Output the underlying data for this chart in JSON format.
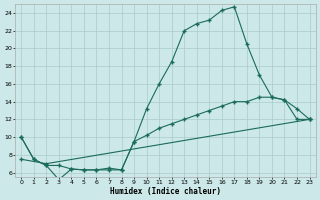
{
  "xlabel": "Humidex (Indice chaleur)",
  "background_color": "#cce8e8",
  "grid_color": "#aacccc",
  "line_color": "#1a6b5a",
  "xlim": [
    -0.5,
    23.5
  ],
  "ylim": [
    5.5,
    25.0
  ],
  "yticks": [
    6,
    8,
    10,
    12,
    14,
    16,
    18,
    20,
    22,
    24
  ],
  "xticks": [
    0,
    1,
    2,
    3,
    4,
    5,
    6,
    7,
    8,
    9,
    10,
    11,
    12,
    13,
    14,
    15,
    16,
    17,
    18,
    19,
    20,
    21,
    22,
    23
  ],
  "line1_x": [
    0,
    1,
    2,
    3,
    4,
    5,
    6,
    7,
    8,
    9,
    10,
    11,
    12,
    13,
    14,
    15,
    16,
    17,
    18,
    19,
    20,
    21,
    22,
    23
  ],
  "line1_y": [
    10,
    7.5,
    6.8,
    5.2,
    6.4,
    6.3,
    6.3,
    6.3,
    6.3,
    9.5,
    13.2,
    16.0,
    18.5,
    22.0,
    22.8,
    23.2,
    24.3,
    24.7,
    20.5,
    17.0,
    14.5,
    14.2,
    13.2,
    12.0
  ],
  "line2_x": [
    0,
    1,
    2,
    3,
    4,
    5,
    6,
    7,
    8,
    9,
    10,
    11,
    12,
    13,
    14,
    15,
    16,
    17,
    18,
    19,
    20,
    21,
    22,
    23
  ],
  "line2_y": [
    10,
    7.5,
    6.8,
    6.8,
    6.4,
    6.3,
    6.3,
    6.5,
    6.3,
    9.5,
    10.2,
    11.0,
    11.5,
    12.0,
    12.5,
    13.0,
    13.5,
    14.0,
    14.0,
    14.5,
    14.5,
    14.2,
    12.0,
    12.0
  ],
  "line3_x": [
    0,
    2,
    23
  ],
  "line3_y": [
    7.5,
    7.0,
    12.0
  ]
}
